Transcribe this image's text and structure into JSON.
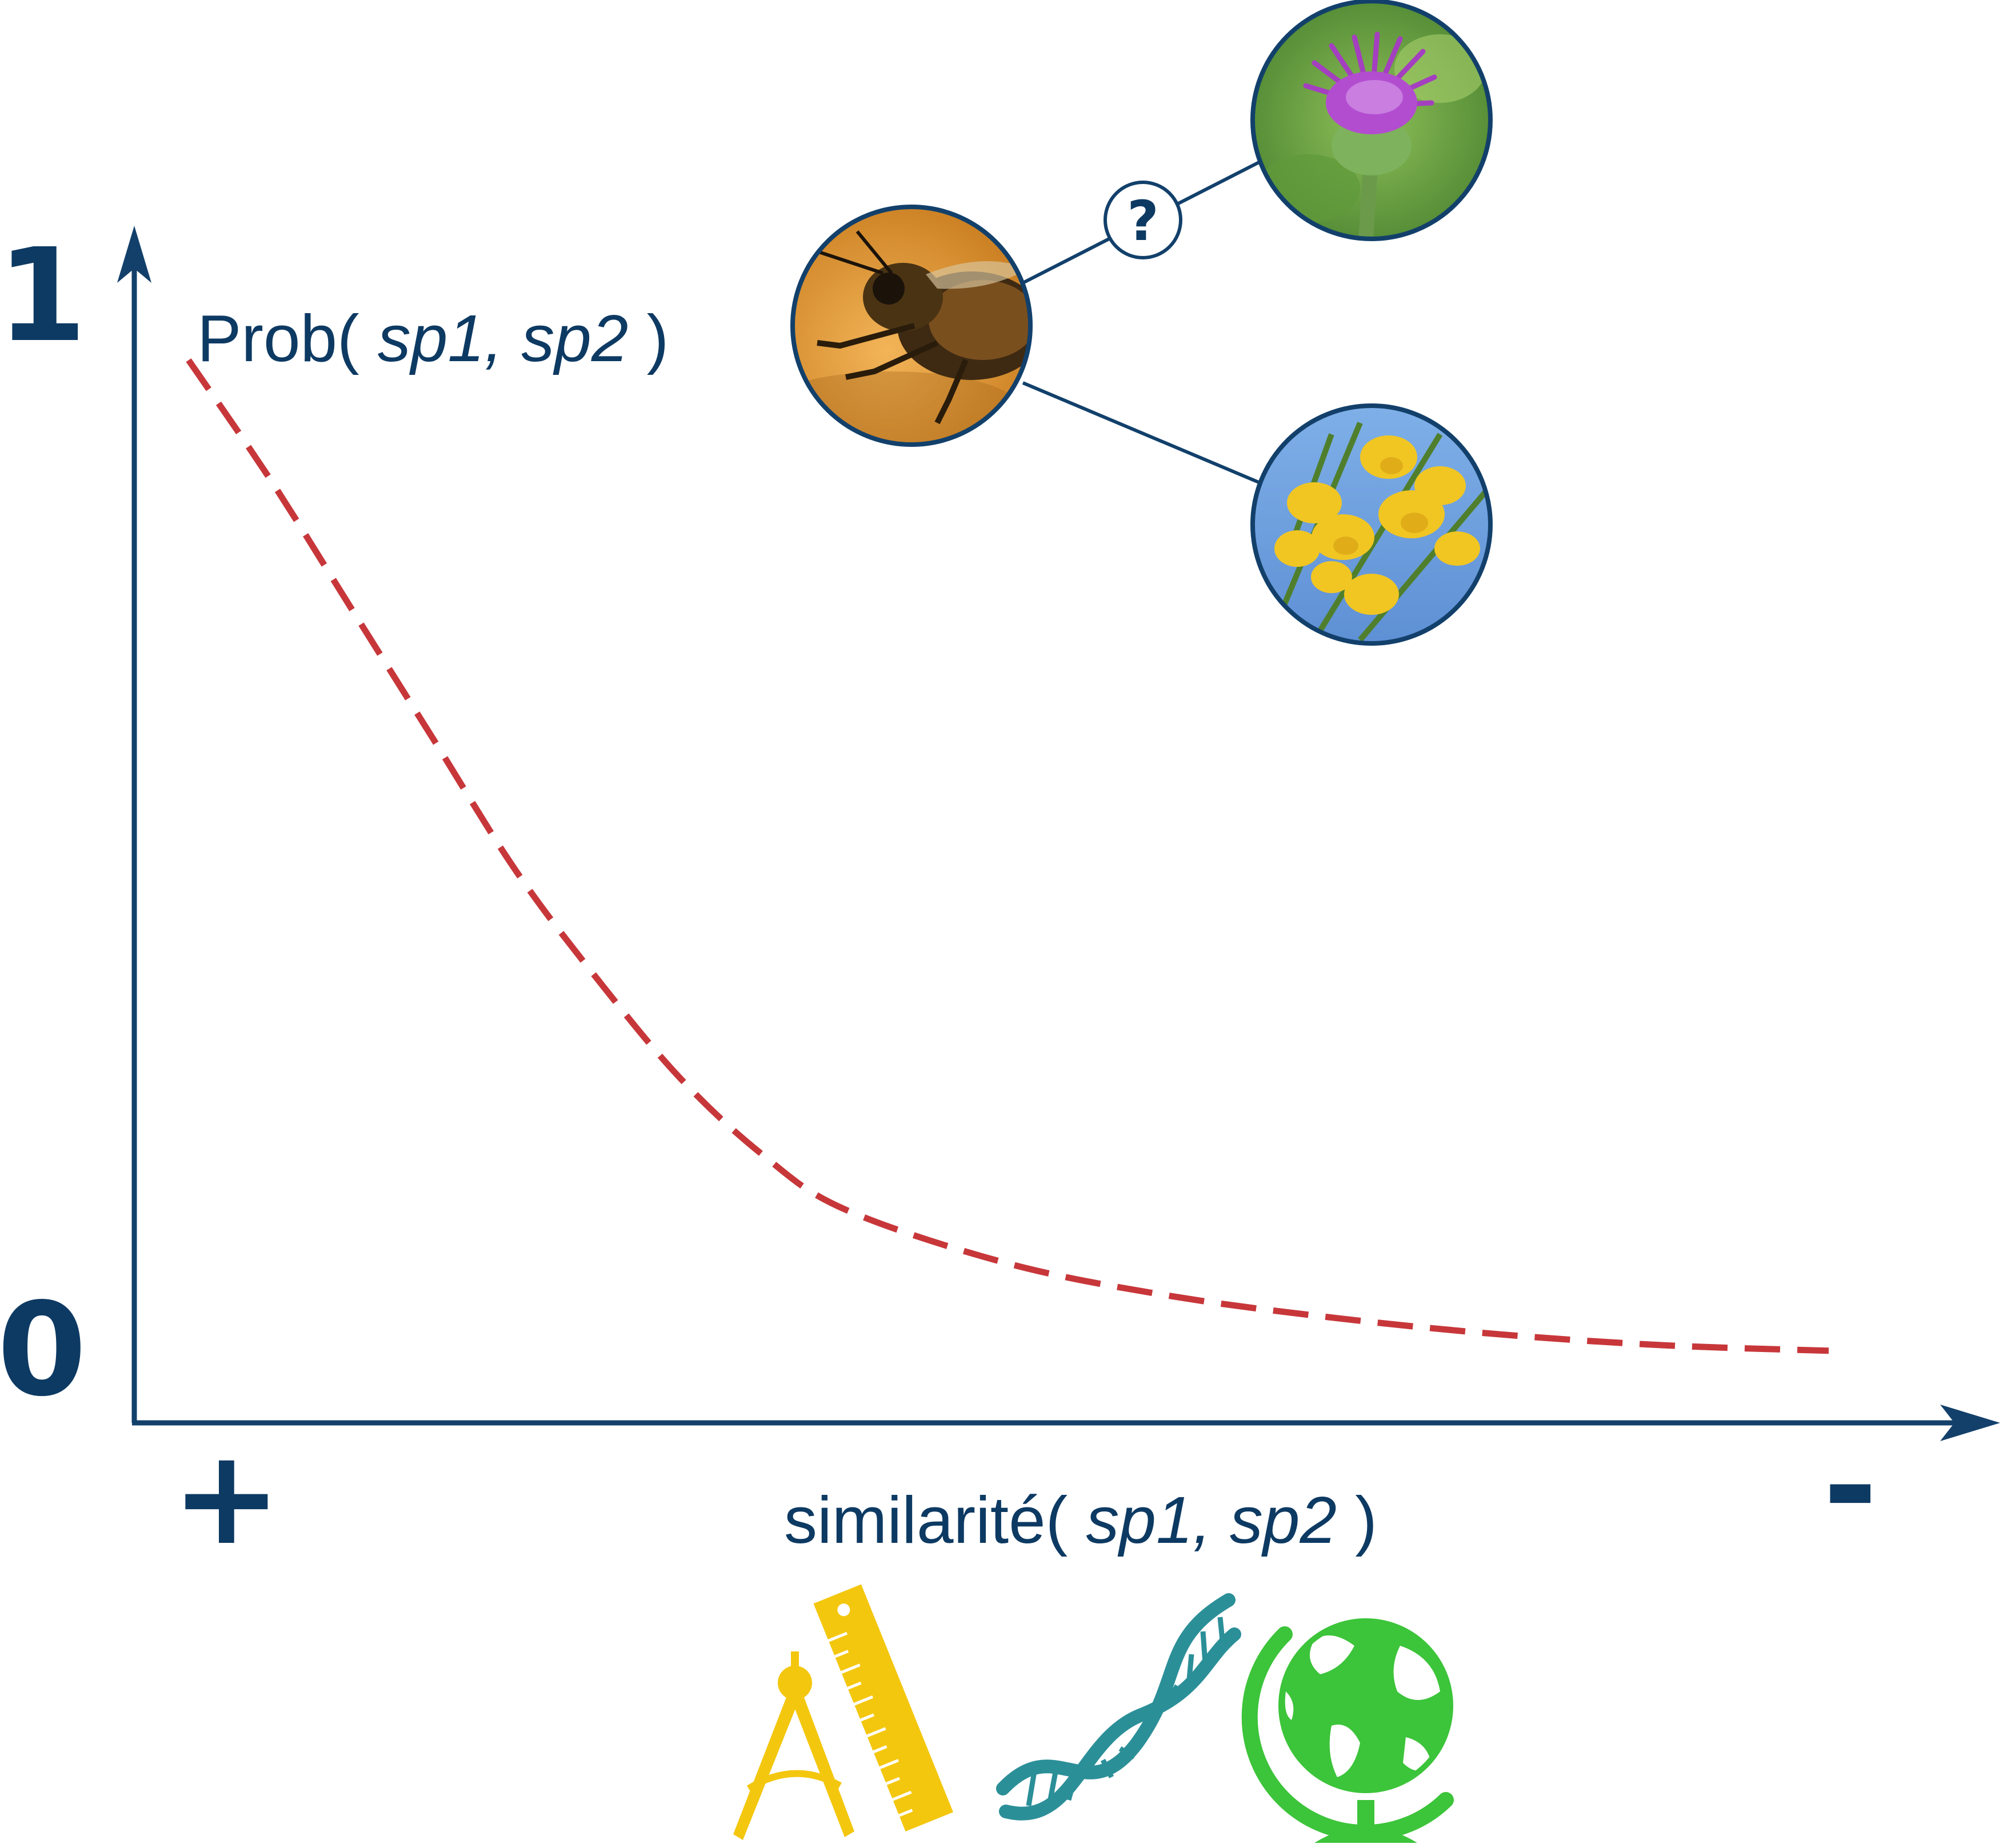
{
  "colors": {
    "axis": "#12406b",
    "curve": "#c7373a",
    "ruler_compass": "#f4c70f",
    "dna": "#2b8f98",
    "globe": "#3cc43a"
  },
  "y_axis": {
    "label_prefix": "Prob(",
    "label_args": " sp1, sp2 ",
    "label_suffix": ")",
    "tick_top": "1",
    "tick_bottom": "0"
  },
  "x_axis": {
    "label_prefix": "similarité(",
    "label_args": " sp1, sp2 ",
    "label_suffix": ")",
    "end_left": "+",
    "end_right": "-"
  },
  "network": {
    "question_mark": "?",
    "nodes": [
      {
        "name": "bee",
        "icon": "bee-photo"
      },
      {
        "name": "thistle",
        "icon": "purple-thistle-photo"
      },
      {
        "name": "broom",
        "icon": "yellow-broom-photo"
      }
    ]
  },
  "similarity_icons": [
    "compass-ruler-icon",
    "dna-icon",
    "globe-icon"
  ],
  "chart_data": {
    "type": "line",
    "style": "dashed",
    "description_axes": {
      "y": "probability 0 to 1",
      "x": "similarity from + to -"
    },
    "x": [
      0,
      0.05,
      0.1,
      0.15,
      0.2,
      0.25,
      0.3,
      0.35,
      0.4,
      0.5,
      0.6,
      0.7,
      0.8,
      0.9,
      1.0
    ],
    "y": [
      0.95,
      0.84,
      0.72,
      0.6,
      0.48,
      0.38,
      0.29,
      0.22,
      0.17,
      0.12,
      0.09,
      0.07,
      0.055,
      0.045,
      0.04
    ],
    "ylim": [
      0,
      1
    ],
    "grid": false
  }
}
